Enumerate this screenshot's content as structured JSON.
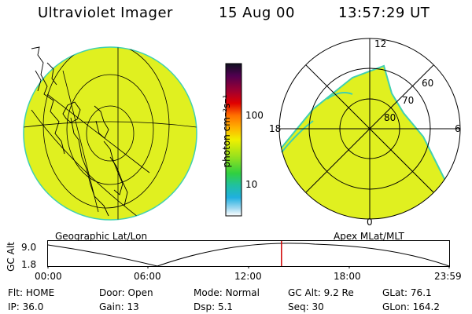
{
  "header": {
    "instrument": "Ultraviolet Imager",
    "date": "15 Aug 00",
    "time": "13:57:29 UT"
  },
  "colorbar": {
    "unit_label": "photon cm⁻²s⁻¹",
    "ticks": [
      "100",
      "10"
    ]
  },
  "polar_plot": {
    "mlt_labels": {
      "top": "12",
      "left": "18",
      "right": "6",
      "bottom": "0"
    },
    "lat_labels": [
      "60",
      "70",
      "80"
    ]
  },
  "panel_labels": {
    "left": "Geographic Lat/Lon",
    "right": "Apex MLat/MLT"
  },
  "altitude_plot": {
    "y_axis_label": "GC Alt",
    "y_ticks": [
      "9.0",
      "1.8"
    ],
    "x_ticks": [
      "00:00",
      "06:00",
      "12:00",
      "18:00",
      "23:59"
    ],
    "current_time_fraction": 0.582
  },
  "status": {
    "row1": [
      {
        "label": "Flt:",
        "value": "HOME"
      },
      {
        "label": "Door:",
        "value": "Open"
      },
      {
        "label": "Mode:",
        "value": "Normal"
      },
      {
        "label": "GC Alt:",
        "value": "9.2 Re"
      },
      {
        "label": "GLat:",
        "value": "76.1"
      }
    ],
    "row2": [
      {
        "label": "IP:",
        "value": "36.0"
      },
      {
        "label": "Gain:",
        "value": "13"
      },
      {
        "label": "Dsp:",
        "value": "5.1"
      },
      {
        "label": "Seq:",
        "value": "30"
      },
      {
        "label": "GLon:",
        "value": "164.2"
      }
    ]
  },
  "colors": {
    "image_fill": "#e0f020",
    "image_edge": "#40d0b0",
    "marker": "#d00000"
  }
}
